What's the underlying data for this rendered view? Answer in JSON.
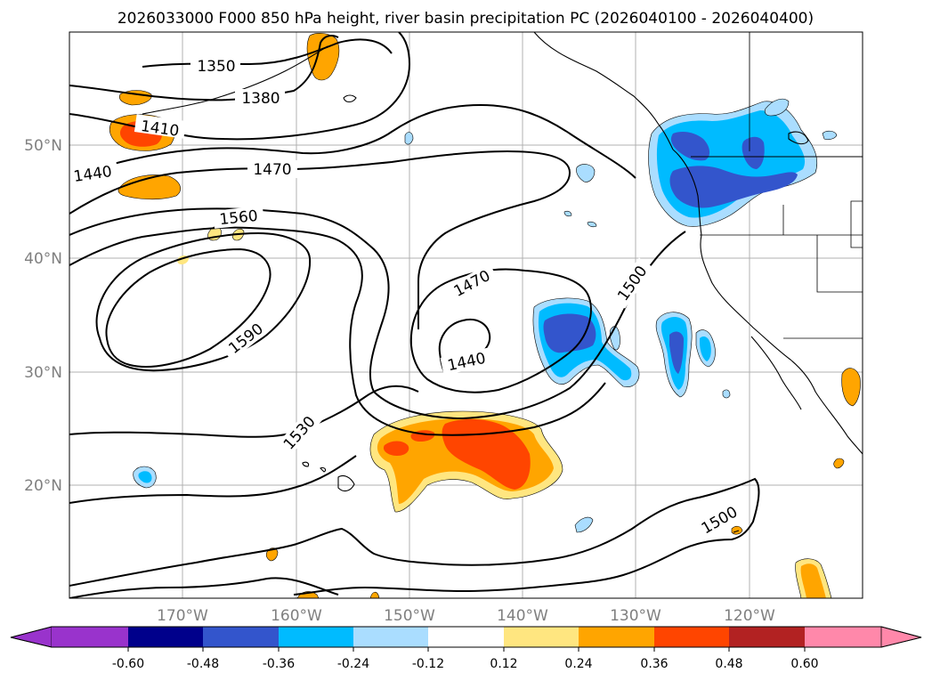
{
  "title": "2026033000 F000 850 hPa height, river basin precipitation PC (2026040100 - 2026040400)",
  "map": {
    "lon_range": [
      -180,
      -110
    ],
    "lat_range": [
      10,
      60
    ],
    "lon_ticks": [
      "170°W",
      "160°W",
      "150°W",
      "140°W",
      "130°W",
      "120°W"
    ],
    "lat_ticks": [
      "20°N",
      "30°N",
      "40°N",
      "50°N"
    ],
    "grid": true,
    "contour_labels": [
      "1350",
      "1380",
      "1410",
      "1440",
      "1470",
      "1560",
      "1590",
      "1530",
      "1470",
      "1440",
      "1500",
      "1500"
    ]
  },
  "colorbar": {
    "orientation": "horizontal",
    "extend": "both",
    "colors": [
      "#9933cc",
      "#00008b",
      "#3355cc",
      "#00bbff",
      "#aaddff",
      "#ffffff",
      "#ffe680",
      "#ffa500",
      "#ff4500",
      "#b22222",
      "#ff88aa"
    ],
    "ticks": [
      "-0.60",
      "-0.48",
      "-0.36",
      "-0.24",
      "-0.12",
      "0.12",
      "0.24",
      "0.36",
      "0.48",
      "0.60"
    ]
  }
}
